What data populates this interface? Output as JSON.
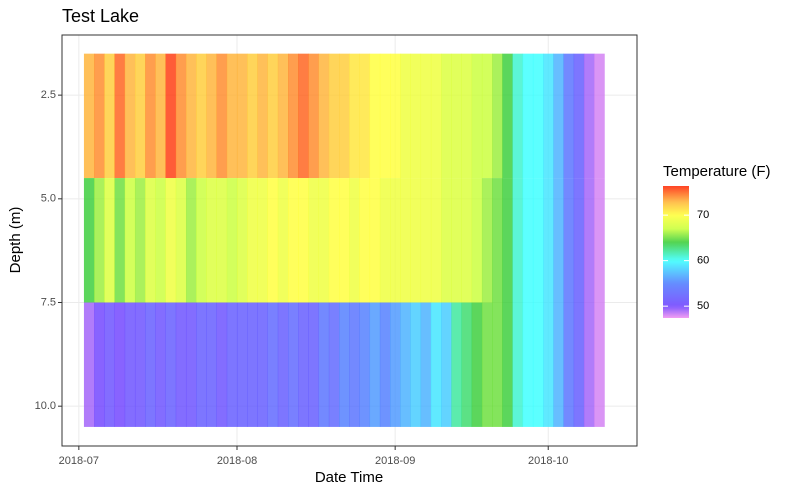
{
  "chart_data": {
    "type": "heatmap",
    "title": "Test Lake",
    "x_label": "Date Time",
    "y_label": "Depth (m)",
    "legend_title": "Temperature (F)",
    "x": [
      2,
      4,
      6,
      8,
      10,
      12,
      14,
      16,
      18,
      20,
      22,
      24,
      26,
      28,
      30,
      32,
      34,
      36,
      38,
      40,
      42,
      44,
      46,
      48,
      50,
      52,
      54,
      56,
      58,
      60,
      62,
      64,
      66,
      68,
      70,
      72,
      74,
      76,
      78,
      80,
      82,
      84,
      86,
      88,
      90,
      92,
      94,
      96,
      98,
      100,
      102
    ],
    "y": [
      3,
      6,
      9
    ],
    "z": [
      [
        73,
        74,
        72,
        75,
        73,
        72,
        74,
        73,
        76,
        74,
        73,
        72,
        73,
        74,
        73,
        73,
        72,
        73,
        72,
        73,
        74,
        75,
        74,
        73,
        72,
        72,
        71,
        71,
        70,
        70,
        70,
        69,
        69,
        69,
        69,
        68,
        68,
        68,
        67,
        67,
        66,
        64,
        61,
        60,
        60,
        59,
        57,
        54,
        52,
        49,
        48
      ],
      [
        64,
        66,
        68,
        65,
        67,
        66,
        68,
        67,
        69,
        68,
        66,
        67,
        68,
        68,
        67,
        68,
        69,
        69,
        70,
        69,
        70,
        70,
        69,
        69,
        70,
        70,
        69,
        70,
        70,
        69,
        69,
        69,
        69,
        69,
        69,
        68,
        68,
        68,
        67,
        66,
        65,
        64,
        61,
        60,
        60,
        59,
        57,
        54,
        52,
        49,
        48
      ],
      [
        49,
        50,
        51,
        50,
        51,
        51,
        52,
        51,
        52,
        51,
        51,
        52,
        52,
        51,
        52,
        52,
        52,
        52,
        53,
        52,
        53,
        52,
        52,
        54,
        53,
        55,
        54,
        55,
        56,
        55,
        56,
        57,
        58,
        57,
        59,
        58,
        62,
        63,
        64,
        65,
        65,
        64,
        61,
        60,
        60,
        59,
        57,
        54,
        52,
        49,
        48
      ]
    ],
    "cell_width": 2,
    "cell_height": 3,
    "xlim": [
      -3.3,
      109.4
    ],
    "xticks": [
      {
        "value": 0,
        "label": "2018-07"
      },
      {
        "value": 31,
        "label": "2018-08"
      },
      {
        "value": 62,
        "label": "2018-09"
      },
      {
        "value": 92,
        "label": "2018-10"
      }
    ],
    "ylim": [
      1.05,
      10.96
    ],
    "y_reversed": true,
    "yticks": [
      2.5,
      {
        "value": 5,
        "label": "5.0"
      },
      7.5,
      {
        "value": 10,
        "label": "10.0"
      }
    ],
    "zlim": [
      47.4,
      76.4
    ],
    "colorscale": [
      [
        47.4,
        "#f08cf0"
      ],
      [
        50,
        "#6a3cff"
      ],
      [
        55,
        "#4a78ff"
      ],
      [
        60,
        "#33ffff"
      ],
      [
        64,
        "#33cc33"
      ],
      [
        67,
        "#c8ff33"
      ],
      [
        70,
        "#ffff33"
      ],
      [
        73,
        "#ffb030"
      ],
      [
        76.4,
        "#ff2200"
      ]
    ],
    "colorbar_ticks": [
      50,
      60,
      70
    ],
    "grid": true
  }
}
